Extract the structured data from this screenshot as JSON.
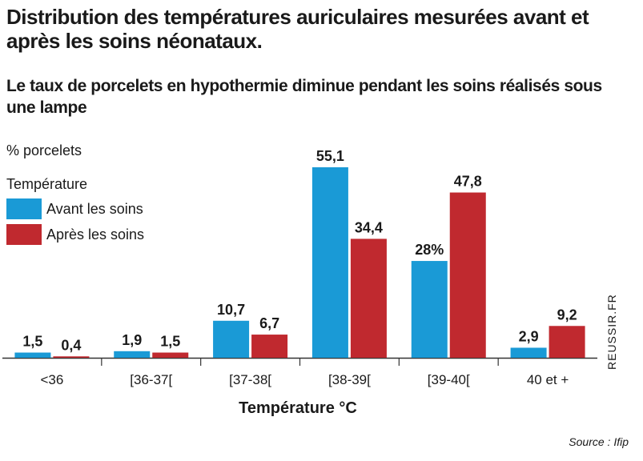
{
  "chart_data": {
    "type": "bar",
    "title": "Distribution des températures auriculaires mesurées avant et après les soins néonataux.",
    "subtitle": "Le taux de porcelets en hypothermie diminue pendant les soins réalisés sous une lampe",
    "ylabel": "% porcelets",
    "xlabel": "Température °C",
    "legend_title": "Température",
    "legend_position": "top-left",
    "grid": false,
    "ylim": [
      0,
      55.1
    ],
    "categories": [
      "<36",
      "[36-37[",
      "[37-38[",
      "[38-39[",
      "[39-40[",
      "40 et +"
    ],
    "series": [
      {
        "name": "Avant les soins",
        "color": "#1a9ad6",
        "values": [
          1.5,
          1.9,
          10.7,
          55.1,
          28,
          2.9
        ],
        "labels": [
          "1,5",
          "1,9",
          "10,7",
          "55,1",
          "28%",
          "2,9"
        ]
      },
      {
        "name": "Après les soins",
        "color": "#c0292f",
        "values": [
          0.4,
          1.5,
          6.7,
          34.4,
          47.8,
          9.2
        ],
        "labels": [
          "0,4",
          "1,5",
          "6,7",
          "34,4",
          "47,8",
          "9,2"
        ]
      }
    ]
  },
  "credit": "REUSSIR.FR",
  "source": "Source : Ifip"
}
